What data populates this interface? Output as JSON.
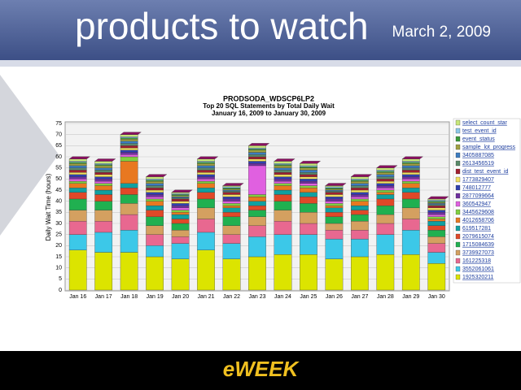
{
  "header": {
    "title": "products to watch",
    "date": "March 2, 2009"
  },
  "footer": {
    "logo": "eWEEK"
  },
  "chart_data": {
    "type": "bar",
    "stacked": true,
    "title": "PRODSODA_WDSCP6LP2",
    "subtitle": "Top 20 SQL Statements by Total Daily Wait",
    "date_range": "January 16, 2009 to January 30, 2009",
    "y_label": "Daily Wait Time (hours)",
    "categories": [
      "Jan 16",
      "Jan 17",
      "Jan 18",
      "Jan 19",
      "Jan 20",
      "Jan 21",
      "Jan 22",
      "Jan 23",
      "Jan 24",
      "Jan 25",
      "Jan 26",
      "Jan 27",
      "Jan 28",
      "Jan 29",
      "Jan 30"
    ],
    "ylim": [
      0,
      75
    ],
    "yticks": [
      0,
      5,
      10,
      15,
      20,
      25,
      30,
      35,
      40,
      45,
      50,
      55,
      60,
      65,
      70,
      75
    ],
    "grid": true,
    "series": [
      {
        "name": "select_count_star",
        "color": "#c8e878",
        "values": [
          1,
          1,
          1,
          1,
          0.5,
          1,
          0.5,
          1,
          1,
          1,
          0.5,
          1,
          1,
          1,
          0.5
        ]
      },
      {
        "name": "test_event_id",
        "color": "#8cc8e8",
        "values": [
          0.5,
          0.5,
          0.5,
          0.5,
          0.5,
          0.5,
          0.5,
          0.5,
          0.5,
          0.5,
          0.5,
          0.5,
          0.5,
          0.5,
          0.5
        ]
      },
      {
        "name": "event_status",
        "color": "#3a9a3a",
        "values": [
          0.5,
          0.5,
          0.5,
          0.5,
          0.5,
          0.5,
          0.5,
          0.5,
          0.5,
          0.5,
          0.5,
          0.5,
          0.5,
          0.5,
          0.5
        ]
      },
      {
        "name": "sample_lot_progress",
        "color": "#a0a040",
        "values": [
          1,
          1,
          1,
          1,
          0.5,
          1,
          0.5,
          1,
          1,
          1,
          0.5,
          1,
          1,
          1,
          0.5
        ]
      },
      {
        "name": "3405887085",
        "color": "#3c7cc0",
        "values": [
          1,
          1,
          1,
          1,
          0.5,
          1,
          0.5,
          1,
          1,
          1,
          0.5,
          1,
          1,
          1,
          0.5
        ]
      },
      {
        "name": "2613456519",
        "color": "#5a8a6a",
        "values": [
          1,
          1,
          1,
          1,
          0.5,
          1,
          0.5,
          1,
          1,
          1,
          0.5,
          1,
          1,
          1,
          0.5
        ]
      },
      {
        "name": "dist_test_event_id",
        "color": "#a02030",
        "values": [
          1,
          1,
          1,
          1,
          1,
          1,
          1,
          1,
          1,
          1,
          1,
          1,
          1,
          1,
          1
        ]
      },
      {
        "name": "1773829407",
        "color": "#f0e060",
        "values": [
          1,
          1,
          1,
          1,
          1,
          1,
          1,
          1,
          1,
          1,
          1,
          1,
          1,
          1,
          1
        ]
      },
      {
        "name": "748012777",
        "color": "#3040b0",
        "values": [
          1,
          1,
          1,
          1,
          1,
          1,
          1,
          1,
          1,
          1,
          1,
          1,
          1,
          1,
          1
        ]
      },
      {
        "name": "2877099664",
        "color": "#7030a0",
        "values": [
          1,
          1,
          1,
          1,
          1,
          1,
          1,
          1,
          1,
          1,
          1,
          1,
          1,
          1,
          1
        ]
      },
      {
        "name": "360542947",
        "color": "#e060e0",
        "values": [
          1,
          1,
          1,
          1,
          1,
          1,
          1,
          13,
          1,
          1,
          1,
          1,
          1,
          1,
          1
        ]
      },
      {
        "name": "3445629608",
        "color": "#80d040",
        "values": [
          1,
          1,
          2,
          1,
          1,
          1,
          1,
          1,
          1,
          1,
          1,
          1,
          1,
          1,
          1
        ]
      },
      {
        "name": "4012658706",
        "color": "#e87820",
        "values": [
          2,
          2,
          10,
          2,
          1,
          2,
          1,
          2,
          2,
          2,
          1,
          2,
          1,
          2,
          1
        ]
      },
      {
        "name": "619517281",
        "color": "#10a0a0",
        "values": [
          2,
          2,
          2,
          2,
          2,
          2,
          2,
          2,
          2,
          2,
          2,
          2,
          2,
          2,
          2
        ]
      },
      {
        "name": "2079615074",
        "color": "#e04828",
        "values": [
          3,
          3,
          3,
          3,
          2,
          3,
          2,
          2,
          3,
          3,
          2,
          2,
          3,
          3,
          2
        ]
      },
      {
        "name": "1715084639",
        "color": "#20b050",
        "values": [
          5,
          4,
          4,
          4,
          3,
          4,
          4,
          3,
          4,
          4,
          3,
          3,
          4,
          4,
          3
        ]
      },
      {
        "name": "3739927073",
        "color": "#d4a060",
        "values": [
          5,
          5,
          5,
          4,
          3,
          5,
          4,
          4,
          5,
          5,
          3,
          4,
          4,
          5,
          3
        ]
      },
      {
        "name": "161225318",
        "color": "#e86890",
        "values": [
          6,
          5,
          7,
          5,
          3,
          6,
          4,
          5,
          6,
          5,
          4,
          4,
          5,
          5,
          4
        ]
      },
      {
        "name": "3552061061",
        "color": "#3cc8e8",
        "values": [
          7,
          9,
          10,
          5,
          7,
          8,
          7,
          9,
          9,
          9,
          9,
          8,
          9,
          11,
          5
        ]
      },
      {
        "name": "1925320211",
        "color": "#dce400",
        "values": [
          18,
          17,
          17,
          15,
          14,
          18,
          14,
          15,
          16,
          16,
          14,
          15,
          16,
          16,
          12
        ]
      }
    ]
  }
}
